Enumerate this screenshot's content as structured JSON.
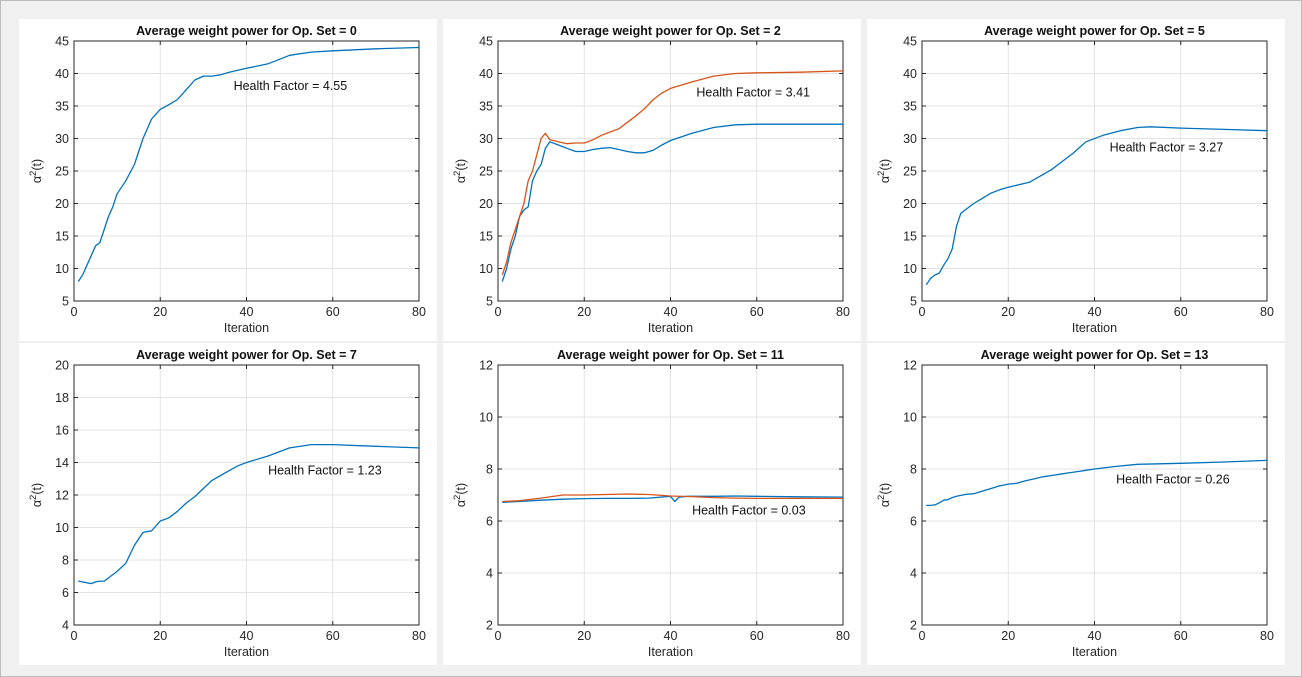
{
  "chart_data": [
    {
      "type": "line",
      "title": "Average weight power for Op. Set = 0",
      "xlabel": "Iteration",
      "ylabel_base": "α",
      "ylabel_sup": "2",
      "ylabel_rest": "(t)",
      "xlim": [
        0,
        80
      ],
      "ylim": [
        5,
        45
      ],
      "xticks": [
        0,
        20,
        40,
        60,
        80
      ],
      "yticks": [
        5,
        10,
        15,
        20,
        25,
        30,
        35,
        40,
        45
      ],
      "grid": true,
      "annotation": {
        "text": "Health Factor =   4.55",
        "x": 37,
        "y": 37.5
      },
      "series": [
        {
          "color": "#0072bd",
          "x": [
            1,
            2,
            3,
            4,
            5,
            6,
            7,
            8,
            9,
            10,
            12,
            14,
            16,
            18,
            20,
            22,
            24,
            26,
            28,
            30,
            32,
            34,
            36,
            40,
            45,
            50,
            55,
            60,
            70,
            80
          ],
          "y": [
            8,
            9,
            10.5,
            12,
            13.5,
            14,
            16,
            18,
            19.5,
            21.5,
            23.5,
            26,
            30,
            33,
            34.5,
            35.2,
            36,
            37.5,
            39,
            39.6,
            39.6,
            39.8,
            40.2,
            40.8,
            41.5,
            42.8,
            43.3,
            43.5,
            43.8,
            44
          ]
        }
      ]
    },
    {
      "type": "line",
      "title": "Average weight power for Op. Set = 2",
      "xlabel": "Iteration",
      "ylabel_base": "α",
      "ylabel_sup": "2",
      "ylabel_rest": "(t)",
      "xlim": [
        0,
        80
      ],
      "ylim": [
        5,
        45
      ],
      "xticks": [
        0,
        20,
        40,
        60,
        80
      ],
      "yticks": [
        5,
        10,
        15,
        20,
        25,
        30,
        35,
        40,
        45
      ],
      "grid": true,
      "annotation": {
        "text": "Health Factor =   3.41",
        "x": 46,
        "y": 36.5
      },
      "series": [
        {
          "color": "#0072bd",
          "x": [
            1,
            2,
            3,
            4,
            5,
            6,
            7,
            8,
            9,
            10,
            11,
            12,
            14,
            16,
            18,
            20,
            22,
            24,
            26,
            28,
            30,
            32,
            34,
            36,
            38,
            40,
            45,
            50,
            55,
            60,
            70,
            80
          ],
          "y": [
            8,
            10,
            13,
            15,
            18,
            19,
            19.5,
            23.5,
            25,
            26,
            28.5,
            29.5,
            29,
            28.5,
            28,
            28,
            28.3,
            28.5,
            28.6,
            28.3,
            28,
            27.8,
            27.8,
            28.2,
            29,
            29.7,
            30.8,
            31.7,
            32.1,
            32.2,
            32.2,
            32.2
          ]
        },
        {
          "color": "#d95319",
          "x": [
            1,
            2,
            3,
            4,
            5,
            6,
            7,
            8,
            9,
            10,
            11,
            12,
            14,
            16,
            18,
            20,
            22,
            24,
            26,
            28,
            30,
            32,
            34,
            36,
            38,
            40,
            45,
            50,
            55,
            60,
            70,
            80
          ],
          "y": [
            9,
            11,
            14,
            16,
            18,
            20,
            23.5,
            25,
            27.5,
            30,
            30.8,
            29.8,
            29.5,
            29.2,
            29.3,
            29.3,
            29.8,
            30.5,
            31,
            31.5,
            32.5,
            33.5,
            34.6,
            36,
            37,
            37.7,
            38.7,
            39.6,
            40,
            40.1,
            40.2,
            40.4
          ]
        }
      ]
    },
    {
      "type": "line",
      "title": "Average weight power for Op. Set = 5",
      "xlabel": "Iteration",
      "ylabel_base": "α",
      "ylabel_sup": "2",
      "ylabel_rest": "(t)",
      "xlim": [
        0,
        80
      ],
      "ylim": [
        5,
        45
      ],
      "xticks": [
        0,
        20,
        40,
        60,
        80
      ],
      "yticks": [
        5,
        10,
        15,
        20,
        25,
        30,
        35,
        40,
        45
      ],
      "grid": true,
      "annotation": {
        "text": "Health Factor =   3.27",
        "x": 43.5,
        "y": 28
      },
      "series": [
        {
          "color": "#0072bd",
          "x": [
            1,
            2,
            3,
            4,
            5,
            6,
            7,
            8,
            9,
            10,
            12,
            14,
            16,
            18,
            20,
            25,
            30,
            35,
            38,
            42,
            46,
            50,
            53,
            60,
            70,
            80
          ],
          "y": [
            7.5,
            8.5,
            9,
            9.3,
            10.5,
            11.5,
            13,
            16.5,
            18.5,
            19,
            20,
            20.8,
            21.6,
            22.1,
            22.5,
            23.3,
            25.2,
            27.7,
            29.5,
            30.5,
            31.2,
            31.7,
            31.8,
            31.6,
            31.4,
            31.2
          ]
        }
      ]
    },
    {
      "type": "line",
      "title": "Average weight power for Op. Set = 7",
      "xlabel": "Iteration",
      "ylabel_base": "α",
      "ylabel_sup": "2",
      "ylabel_rest": "(t)",
      "xlim": [
        0,
        80
      ],
      "ylim": [
        4,
        20
      ],
      "xticks": [
        0,
        20,
        40,
        60,
        80
      ],
      "yticks": [
        4,
        6,
        8,
        10,
        12,
        14,
        16,
        18,
        20
      ],
      "grid": true,
      "annotation": {
        "text": "Health Factor =   1.23",
        "x": 45,
        "y": 13.25
      },
      "series": [
        {
          "color": "#0072bd",
          "x": [
            1,
            2,
            3,
            4,
            5,
            6,
            7,
            8,
            9,
            10,
            12,
            14,
            16,
            18,
            20,
            22,
            24,
            26,
            28,
            30,
            32,
            34,
            36,
            38,
            40,
            45,
            50,
            55,
            60,
            70,
            80
          ],
          "y": [
            6.7,
            6.65,
            6.6,
            6.55,
            6.65,
            6.7,
            6.7,
            6.9,
            7.1,
            7.3,
            7.8,
            8.9,
            9.7,
            9.8,
            10.4,
            10.6,
            11,
            11.5,
            11.9,
            12.4,
            12.9,
            13.2,
            13.5,
            13.8,
            14,
            14.4,
            14.9,
            15.1,
            15.1,
            15,
            14.9
          ]
        }
      ]
    },
    {
      "type": "line",
      "title": "Average weight power for Op. Set = 11",
      "xlabel": "Iteration",
      "ylabel_base": "α",
      "ylabel_sup": "2",
      "ylabel_rest": "(t)",
      "xlim": [
        0,
        80
      ],
      "ylim": [
        2,
        12
      ],
      "xticks": [
        0,
        20,
        40,
        60,
        80
      ],
      "yticks": [
        2,
        4,
        6,
        8,
        10,
        12
      ],
      "grid": true,
      "annotation": {
        "text": "Health Factor =   0.03",
        "x": 45,
        "y": 6.25
      },
      "series": [
        {
          "color": "#0072bd",
          "x": [
            1,
            5,
            10,
            15,
            20,
            25,
            30,
            35,
            40,
            41,
            42,
            44,
            50,
            55,
            60,
            70,
            80
          ],
          "y": [
            6.72,
            6.75,
            6.8,
            6.84,
            6.86,
            6.87,
            6.87,
            6.88,
            6.95,
            6.75,
            6.92,
            6.95,
            6.95,
            6.96,
            6.95,
            6.93,
            6.92
          ]
        },
        {
          "color": "#d95319",
          "x": [
            1,
            5,
            10,
            15,
            20,
            25,
            30,
            35,
            40,
            45,
            50,
            55,
            60,
            70,
            80
          ],
          "y": [
            6.75,
            6.78,
            6.88,
            7,
            7,
            7.02,
            7.04,
            7.02,
            6.96,
            6.94,
            6.9,
            6.88,
            6.87,
            6.87,
            6.87
          ]
        }
      ]
    },
    {
      "type": "line",
      "title": "Average weight power for Op. Set = 13",
      "xlabel": "Iteration",
      "ylabel_base": "α",
      "ylabel_sup": "2",
      "ylabel_rest": "(t)",
      "xlim": [
        0,
        80
      ],
      "ylim": [
        2,
        12
      ],
      "xticks": [
        0,
        20,
        40,
        60,
        80
      ],
      "yticks": [
        2,
        4,
        6,
        8,
        10,
        12
      ],
      "grid": true,
      "annotation": {
        "text": "Health Factor =   0.26",
        "x": 45,
        "y": 7.45
      },
      "series": [
        {
          "color": "#0072bd",
          "x": [
            1,
            2,
            3,
            4,
            5,
            6,
            7,
            8,
            10,
            12,
            14,
            16,
            18,
            20,
            22,
            24,
            26,
            28,
            30,
            32,
            34,
            36,
            38,
            40,
            45,
            50,
            55,
            60,
            70,
            80
          ],
          "y": [
            6.6,
            6.6,
            6.62,
            6.7,
            6.8,
            6.82,
            6.9,
            6.95,
            7.02,
            7.05,
            7.15,
            7.25,
            7.35,
            7.42,
            7.45,
            7.55,
            7.62,
            7.7,
            7.75,
            7.8,
            7.85,
            7.9,
            7.95,
            8,
            8.1,
            8.18,
            8.2,
            8.22,
            8.27,
            8.33
          ]
        }
      ]
    }
  ]
}
